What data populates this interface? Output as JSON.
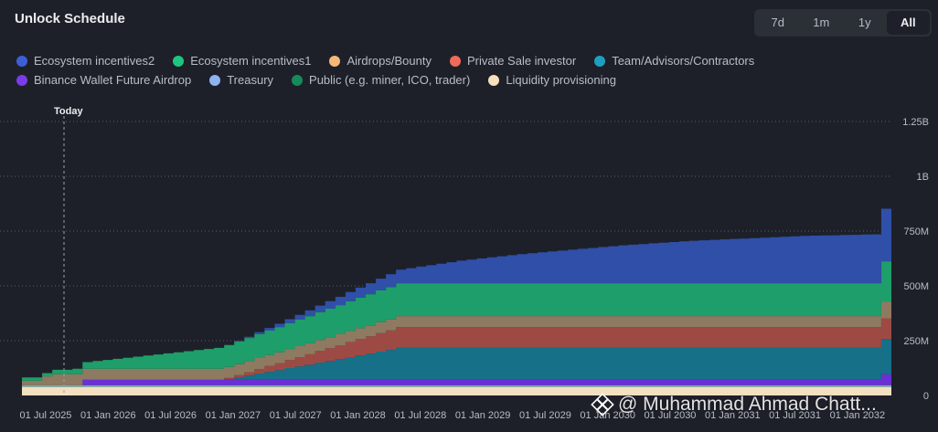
{
  "header": {
    "title": "Unlock Schedule"
  },
  "range_buttons": [
    {
      "label": "7d",
      "active": false
    },
    {
      "label": "1m",
      "active": false
    },
    {
      "label": "1y",
      "active": false
    },
    {
      "label": "All",
      "active": true
    }
  ],
  "watermark": {
    "text": "@ Muhammad Ahmad Chatt...",
    "icon": "binance-logo-icon"
  },
  "chart_data": {
    "type": "area",
    "stacked": true,
    "step": true,
    "today_label": "Today",
    "x_tick_labels": [
      "01 Jul 2025",
      "01 Jan 2026",
      "01 Jul 2026",
      "01 Jan 2027",
      "01 Jul 2027",
      "01 Jan 2028",
      "01 Jul 2028",
      "01 Jan 2029",
      "01 Jul 2029",
      "01 Jan 2030",
      "01 Jul 2030",
      "01 Jan 2031",
      "01 Jul 2031",
      "01 Jan 2032"
    ],
    "y_tick_labels": [
      "0",
      "250M",
      "500M",
      "750M",
      "1B",
      "1.25B"
    ],
    "y_axis_position": "right",
    "ylim": [
      0,
      1250000000
    ],
    "grid": "horizontal dotted",
    "legend_position": "top",
    "x": [
      "2025-05",
      "2025-06",
      "2025-07",
      "2025-08",
      "2025-09",
      "2025-10",
      "2025-11",
      "2025-12",
      "2026-01",
      "2026-02",
      "2026-03",
      "2026-04",
      "2026-05",
      "2026-06",
      "2026-07",
      "2026-08",
      "2026-09",
      "2026-10",
      "2026-11",
      "2026-12",
      "2027-01",
      "2027-02",
      "2027-03",
      "2027-04",
      "2027-05",
      "2027-06",
      "2027-07",
      "2027-08",
      "2027-09",
      "2027-10",
      "2027-11",
      "2027-12",
      "2028-01",
      "2028-02",
      "2028-03",
      "2028-04",
      "2028-05",
      "2028-06",
      "2028-07",
      "2028-08",
      "2028-09",
      "2028-10",
      "2028-11",
      "2028-12",
      "2029-01",
      "2029-02",
      "2029-03",
      "2029-04",
      "2029-05",
      "2029-06",
      "2029-07",
      "2029-08",
      "2029-09",
      "2029-10",
      "2029-11",
      "2029-12",
      "2030-01",
      "2030-02",
      "2030-03",
      "2030-04",
      "2030-05",
      "2030-06",
      "2030-07",
      "2030-08",
      "2030-09",
      "2030-10",
      "2030-11",
      "2030-12",
      "2031-01",
      "2031-02",
      "2031-03",
      "2031-04",
      "2031-05",
      "2031-06",
      "2031-07",
      "2031-08",
      "2031-09",
      "2031-10",
      "2031-11",
      "2031-12",
      "2032-01",
      "2032-02",
      "2032-03",
      "2032-04",
      "2032-05",
      "2032-06"
    ],
    "series": [
      {
        "name": "Liquidity provisioning",
        "color": "#f3e0c0",
        "values": [
          40000000,
          40000000,
          40000000,
          40000000,
          40000000,
          40000000,
          40000000,
          40000000,
          40000000,
          40000000,
          40000000,
          40000000,
          40000000,
          40000000,
          40000000,
          40000000,
          40000000,
          40000000,
          40000000,
          40000000,
          40000000,
          40000000,
          40000000,
          40000000,
          40000000,
          40000000,
          40000000,
          40000000,
          40000000,
          40000000,
          40000000,
          40000000,
          40000000,
          40000000,
          40000000,
          40000000,
          40000000,
          40000000,
          40000000,
          40000000,
          40000000,
          40000000,
          40000000,
          40000000,
          40000000,
          40000000,
          40000000,
          40000000,
          40000000,
          40000000,
          40000000,
          40000000,
          40000000,
          40000000,
          40000000,
          40000000,
          40000000,
          40000000,
          40000000,
          40000000,
          40000000,
          40000000,
          40000000,
          40000000,
          40000000,
          40000000,
          40000000,
          40000000,
          40000000,
          40000000,
          40000000,
          40000000,
          40000000,
          40000000,
          40000000,
          40000000,
          40000000,
          40000000,
          40000000,
          40000000,
          40000000,
          40000000,
          40000000,
          40000000,
          40000000,
          40000000
        ]
      },
      {
        "name": "Public (e.g. miner, ICO, trader)",
        "color": "#178a5c",
        "values": [
          2000000,
          2000000,
          2000000,
          2000000,
          2000000,
          2000000,
          2000000,
          2000000,
          2000000,
          2000000,
          2000000,
          2000000,
          2000000,
          2000000,
          2000000,
          2000000,
          2000000,
          2000000,
          2000000,
          2000000,
          2000000,
          2000000,
          2000000,
          2000000,
          2000000,
          2000000,
          2000000,
          2000000,
          2000000,
          2000000,
          2000000,
          2000000,
          2000000,
          2000000,
          2000000,
          2000000,
          2000000,
          2000000,
          2000000,
          2000000,
          2000000,
          2000000,
          2000000,
          2000000,
          2000000,
          2000000,
          2000000,
          2000000,
          2000000,
          2000000,
          2000000,
          2000000,
          2000000,
          2000000,
          2000000,
          2000000,
          2000000,
          2000000,
          2000000,
          2000000,
          2000000,
          2000000,
          2000000,
          2000000,
          2000000,
          2000000,
          2000000,
          2000000,
          2000000,
          2000000,
          2000000,
          2000000,
          2000000,
          2000000,
          2000000,
          2000000,
          2000000,
          2000000,
          2000000,
          2000000,
          2000000,
          2000000,
          2000000,
          2000000,
          2000000,
          2000000
        ]
      },
      {
        "name": "Treasury",
        "color": "#8fb3f0",
        "values": [
          5000000,
          5000000,
          5000000,
          5000000,
          5000000,
          5000000,
          5000000,
          5000000,
          5000000,
          5000000,
          5000000,
          5000000,
          5000000,
          5000000,
          5000000,
          5000000,
          5000000,
          5000000,
          5000000,
          5000000,
          5000000,
          5000000,
          5000000,
          5000000,
          5000000,
          5000000,
          5000000,
          5000000,
          5000000,
          5000000,
          5000000,
          5000000,
          5000000,
          5000000,
          5000000,
          5000000,
          5000000,
          5000000,
          5000000,
          5000000,
          5000000,
          5000000,
          5000000,
          5000000,
          5000000,
          5000000,
          5000000,
          5000000,
          5000000,
          5000000,
          5000000,
          5000000,
          5000000,
          5000000,
          5000000,
          5000000,
          5000000,
          5000000,
          5000000,
          5000000,
          5000000,
          5000000,
          5000000,
          5000000,
          5000000,
          5000000,
          5000000,
          5000000,
          5000000,
          5000000,
          5000000,
          5000000,
          5000000,
          5000000,
          5000000,
          5000000,
          5000000,
          5000000,
          5000000,
          5000000,
          5000000,
          5000000,
          5000000,
          5000000,
          5000000,
          5000000
        ]
      },
      {
        "name": "Binance Wallet Future Airdrop",
        "color": "#6b2fd6",
        "values": [
          0,
          0,
          0,
          0,
          0,
          0,
          25000000,
          25000000,
          25000000,
          25000000,
          25000000,
          25000000,
          25000000,
          25000000,
          25000000,
          25000000,
          25000000,
          25000000,
          25000000,
          25000000,
          25000000,
          25000000,
          25000000,
          25000000,
          25000000,
          25000000,
          25000000,
          25000000,
          25000000,
          25000000,
          25000000,
          25000000,
          25000000,
          25000000,
          25000000,
          25000000,
          25000000,
          25000000,
          25000000,
          25000000,
          25000000,
          25000000,
          25000000,
          25000000,
          25000000,
          25000000,
          25000000,
          25000000,
          25000000,
          25000000,
          25000000,
          25000000,
          25000000,
          25000000,
          25000000,
          25000000,
          25000000,
          25000000,
          25000000,
          25000000,
          25000000,
          25000000,
          25000000,
          25000000,
          25000000,
          25000000,
          25000000,
          25000000,
          25000000,
          25000000,
          25000000,
          25000000,
          25000000,
          25000000,
          25000000,
          25000000,
          25000000,
          25000000,
          25000000,
          25000000,
          25000000,
          25000000,
          25000000,
          25000000,
          25000000,
          50000000
        ]
      },
      {
        "name": "Team/Advisors/Contractors",
        "color": "#167088",
        "values": [
          0,
          0,
          0,
          0,
          0,
          0,
          0,
          0,
          0,
          0,
          0,
          0,
          0,
          0,
          0,
          0,
          0,
          0,
          0,
          0,
          3000000,
          11000000,
          19000000,
          28000000,
          36000000,
          44000000,
          53000000,
          61000000,
          69000000,
          78000000,
          86000000,
          94000000,
          103000000,
          111000000,
          119000000,
          128000000,
          136000000,
          145000000,
          145000000,
          145000000,
          145000000,
          145000000,
          145000000,
          145000000,
          145000000,
          145000000,
          145000000,
          145000000,
          145000000,
          145000000,
          145000000,
          145000000,
          145000000,
          145000000,
          145000000,
          145000000,
          145000000,
          145000000,
          145000000,
          145000000,
          145000000,
          145000000,
          145000000,
          145000000,
          145000000,
          145000000,
          145000000,
          145000000,
          145000000,
          145000000,
          145000000,
          145000000,
          145000000,
          145000000,
          145000000,
          145000000,
          145000000,
          145000000,
          145000000,
          145000000,
          145000000,
          145000000,
          145000000,
          145000000,
          145000000,
          160000000
        ]
      },
      {
        "name": "Private Sale investor",
        "color": "#9e4a44",
        "values": [
          0,
          0,
          0,
          0,
          0,
          0,
          0,
          0,
          0,
          0,
          0,
          0,
          0,
          0,
          0,
          0,
          0,
          0,
          0,
          0,
          5000000,
          10000000,
          15000000,
          21000000,
          26000000,
          31000000,
          37000000,
          42000000,
          47000000,
          53000000,
          58000000,
          63000000,
          69000000,
          74000000,
          79000000,
          84000000,
          89000000,
          95000000,
          95000000,
          95000000,
          95000000,
          95000000,
          95000000,
          95000000,
          95000000,
          95000000,
          95000000,
          95000000,
          95000000,
          95000000,
          95000000,
          95000000,
          95000000,
          95000000,
          95000000,
          95000000,
          95000000,
          95000000,
          95000000,
          95000000,
          95000000,
          95000000,
          95000000,
          95000000,
          95000000,
          95000000,
          95000000,
          95000000,
          95000000,
          95000000,
          95000000,
          95000000,
          95000000,
          95000000,
          95000000,
          95000000,
          95000000,
          95000000,
          95000000,
          95000000,
          95000000,
          95000000,
          95000000,
          95000000,
          95000000,
          95000000
        ]
      },
      {
        "name": "Airdrops/Bounty",
        "color": "#8e7a60",
        "values": [
          20000000,
          20000000,
          40000000,
          50000000,
          50000000,
          50000000,
          50000000,
          50000000,
          50000000,
          50000000,
          50000000,
          50000000,
          50000000,
          50000000,
          50000000,
          50000000,
          50000000,
          50000000,
          50000000,
          50000000,
          50000000,
          50000000,
          50000000,
          50000000,
          50000000,
          50000000,
          50000000,
          50000000,
          50000000,
          50000000,
          50000000,
          50000000,
          50000000,
          50000000,
          50000000,
          50000000,
          50000000,
          50000000,
          50000000,
          50000000,
          50000000,
          50000000,
          50000000,
          50000000,
          50000000,
          50000000,
          50000000,
          50000000,
          50000000,
          50000000,
          50000000,
          50000000,
          50000000,
          50000000,
          50000000,
          50000000,
          50000000,
          50000000,
          50000000,
          50000000,
          50000000,
          50000000,
          50000000,
          50000000,
          50000000,
          50000000,
          50000000,
          50000000,
          50000000,
          50000000,
          50000000,
          50000000,
          50000000,
          50000000,
          50000000,
          50000000,
          50000000,
          50000000,
          50000000,
          50000000,
          50000000,
          50000000,
          50000000,
          50000000,
          50000000,
          75000000
        ]
      },
      {
        "name": "Ecosystem incentives1",
        "color": "#1e9e6a",
        "values": [
          15000000,
          15000000,
          15000000,
          20000000,
          20000000,
          25000000,
          30000000,
          35000000,
          40000000,
          45000000,
          50000000,
          55000000,
          60000000,
          65000000,
          70000000,
          75000000,
          80000000,
          85000000,
          90000000,
          95000000,
          100000000,
          103000000,
          106000000,
          109000000,
          112000000,
          115000000,
          118000000,
          121000000,
          124000000,
          127000000,
          130000000,
          133000000,
          136000000,
          139000000,
          142000000,
          145000000,
          148000000,
          150000000,
          150000000,
          150000000,
          150000000,
          150000000,
          150000000,
          150000000,
          150000000,
          150000000,
          150000000,
          150000000,
          150000000,
          150000000,
          150000000,
          150000000,
          150000000,
          150000000,
          150000000,
          150000000,
          150000000,
          150000000,
          150000000,
          150000000,
          150000000,
          150000000,
          150000000,
          150000000,
          150000000,
          150000000,
          150000000,
          150000000,
          150000000,
          150000000,
          150000000,
          150000000,
          150000000,
          150000000,
          150000000,
          150000000,
          150000000,
          150000000,
          150000000,
          150000000,
          150000000,
          150000000,
          150000000,
          150000000,
          150000000,
          185000000
        ]
      },
      {
        "name": "Ecosystem incentives2",
        "color": "#2f4fa8",
        "values": [
          0,
          0,
          0,
          0,
          0,
          0,
          0,
          0,
          0,
          0,
          0,
          0,
          0,
          0,
          0,
          0,
          0,
          0,
          0,
          0,
          0,
          3000000,
          6000000,
          9000000,
          12000000,
          15000000,
          18000000,
          22000000,
          26000000,
          30000000,
          34000000,
          38000000,
          42000000,
          46000000,
          50000000,
          54000000,
          58000000,
          62000000,
          69000000,
          76000000,
          82000000,
          89000000,
          96000000,
          103000000,
          108000000,
          113000000,
          118000000,
          123000000,
          128000000,
          133000000,
          137000000,
          141000000,
          145000000,
          149000000,
          153000000,
          157000000,
          161000000,
          165000000,
          169000000,
          173000000,
          176000000,
          179000000,
          182000000,
          185000000,
          188000000,
          191000000,
          194000000,
          196000000,
          198000000,
          200000000,
          202000000,
          204000000,
          206000000,
          208000000,
          210000000,
          212000000,
          214000000,
          216000000,
          217000000,
          218000000,
          219000000,
          220000000,
          221000000,
          222000000,
          223000000,
          240000000
        ]
      }
    ]
  },
  "legend": [
    [
      {
        "label": "Ecosystem incentives2",
        "color": "#3d5fd6"
      },
      {
        "label": "Ecosystem incentives1",
        "color": "#1ec77f"
      },
      {
        "label": "Airdrops/Bounty",
        "color": "#f5b87a"
      },
      {
        "label": "Private Sale investor",
        "color": "#ef6a58"
      },
      {
        "label": "Team/Advisors/Contractors",
        "color": "#1e9ec0"
      }
    ],
    [
      {
        "label": "Binance Wallet Future Airdrop",
        "color": "#7a3ce8"
      },
      {
        "label": "Treasury",
        "color": "#8fb3f0"
      },
      {
        "label": "Public (e.g. miner, ICO, trader)",
        "color": "#178a5c"
      },
      {
        "label": "Liquidity provisioning",
        "color": "#f7dfbe"
      }
    ]
  ]
}
